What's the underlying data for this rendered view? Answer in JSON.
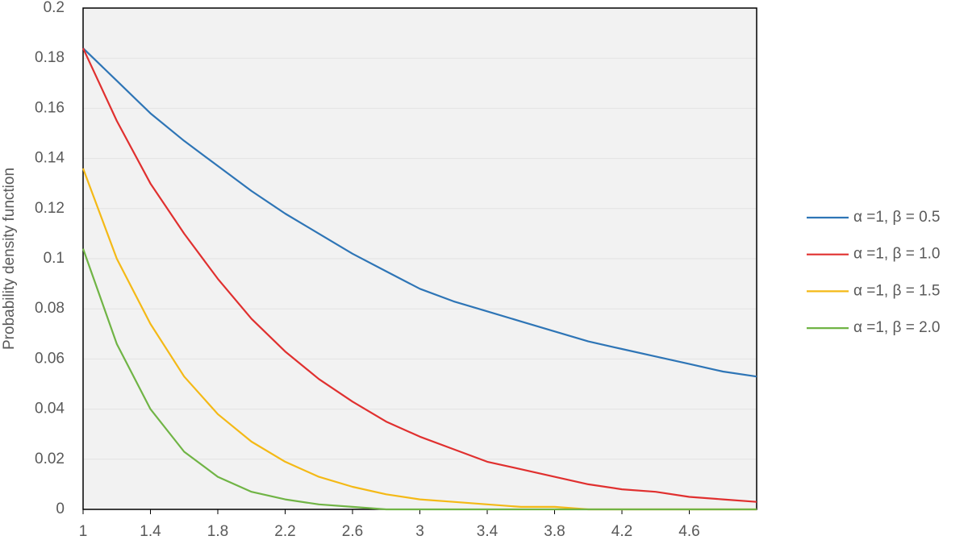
{
  "chart_data": {
    "type": "line",
    "y_label": "Probability density function",
    "x": [
      1,
      1.2,
      1.4,
      1.6,
      1.8,
      2.0,
      2.2,
      2.4,
      2.6,
      2.8,
      3.0,
      3.2,
      3.4,
      3.6,
      3.8,
      4.0,
      4.2,
      4.4,
      4.6,
      4.8,
      5.0
    ],
    "series": [
      {
        "name": "α =1, β = 0.5",
        "color": "#2e75b6",
        "values": [
          0.184,
          0.171,
          0.158,
          0.147,
          0.137,
          0.127,
          0.118,
          0.11,
          0.102,
          0.095,
          0.088,
          0.083,
          0.079,
          0.075,
          0.071,
          0.067,
          0.064,
          0.061,
          0.058,
          0.055,
          0.053
        ]
      },
      {
        "name": "α =1, β = 1.0",
        "color": "#e0302f",
        "values": [
          0.184,
          0.155,
          0.13,
          0.11,
          0.092,
          0.076,
          0.063,
          0.052,
          0.043,
          0.035,
          0.029,
          0.024,
          0.019,
          0.016,
          0.013,
          0.01,
          0.008,
          0.007,
          0.005,
          0.004,
          0.003
        ]
      },
      {
        "name": "α =1, β = 1.5",
        "color": "#f4b916",
        "values": [
          0.136,
          0.1,
          0.074,
          0.053,
          0.038,
          0.027,
          0.019,
          0.013,
          0.009,
          0.006,
          0.004,
          0.003,
          0.002,
          0.001,
          0.001,
          0,
          0,
          0,
          0,
          0,
          0
        ]
      },
      {
        "name": "α =1, β = 2.0",
        "color": "#70b445",
        "values": [
          0.104,
          0.066,
          0.04,
          0.023,
          0.013,
          0.007,
          0.004,
          0.002,
          0.001,
          0,
          0,
          0,
          0,
          0,
          0,
          0,
          0,
          0,
          0,
          0,
          0
        ]
      }
    ],
    "xlim": [
      1,
      5
    ],
    "xticks": [
      1,
      1.4,
      1.8,
      2.2,
      2.6,
      3,
      3.4,
      3.8,
      4.2,
      4.6
    ],
    "ylim": [
      0,
      0.2
    ],
    "yticks": [
      0,
      0.02,
      0.04,
      0.06,
      0.08,
      0.1,
      0.12,
      0.14,
      0.16,
      0.18,
      0.2
    ],
    "grid": true,
    "legend": "right"
  }
}
